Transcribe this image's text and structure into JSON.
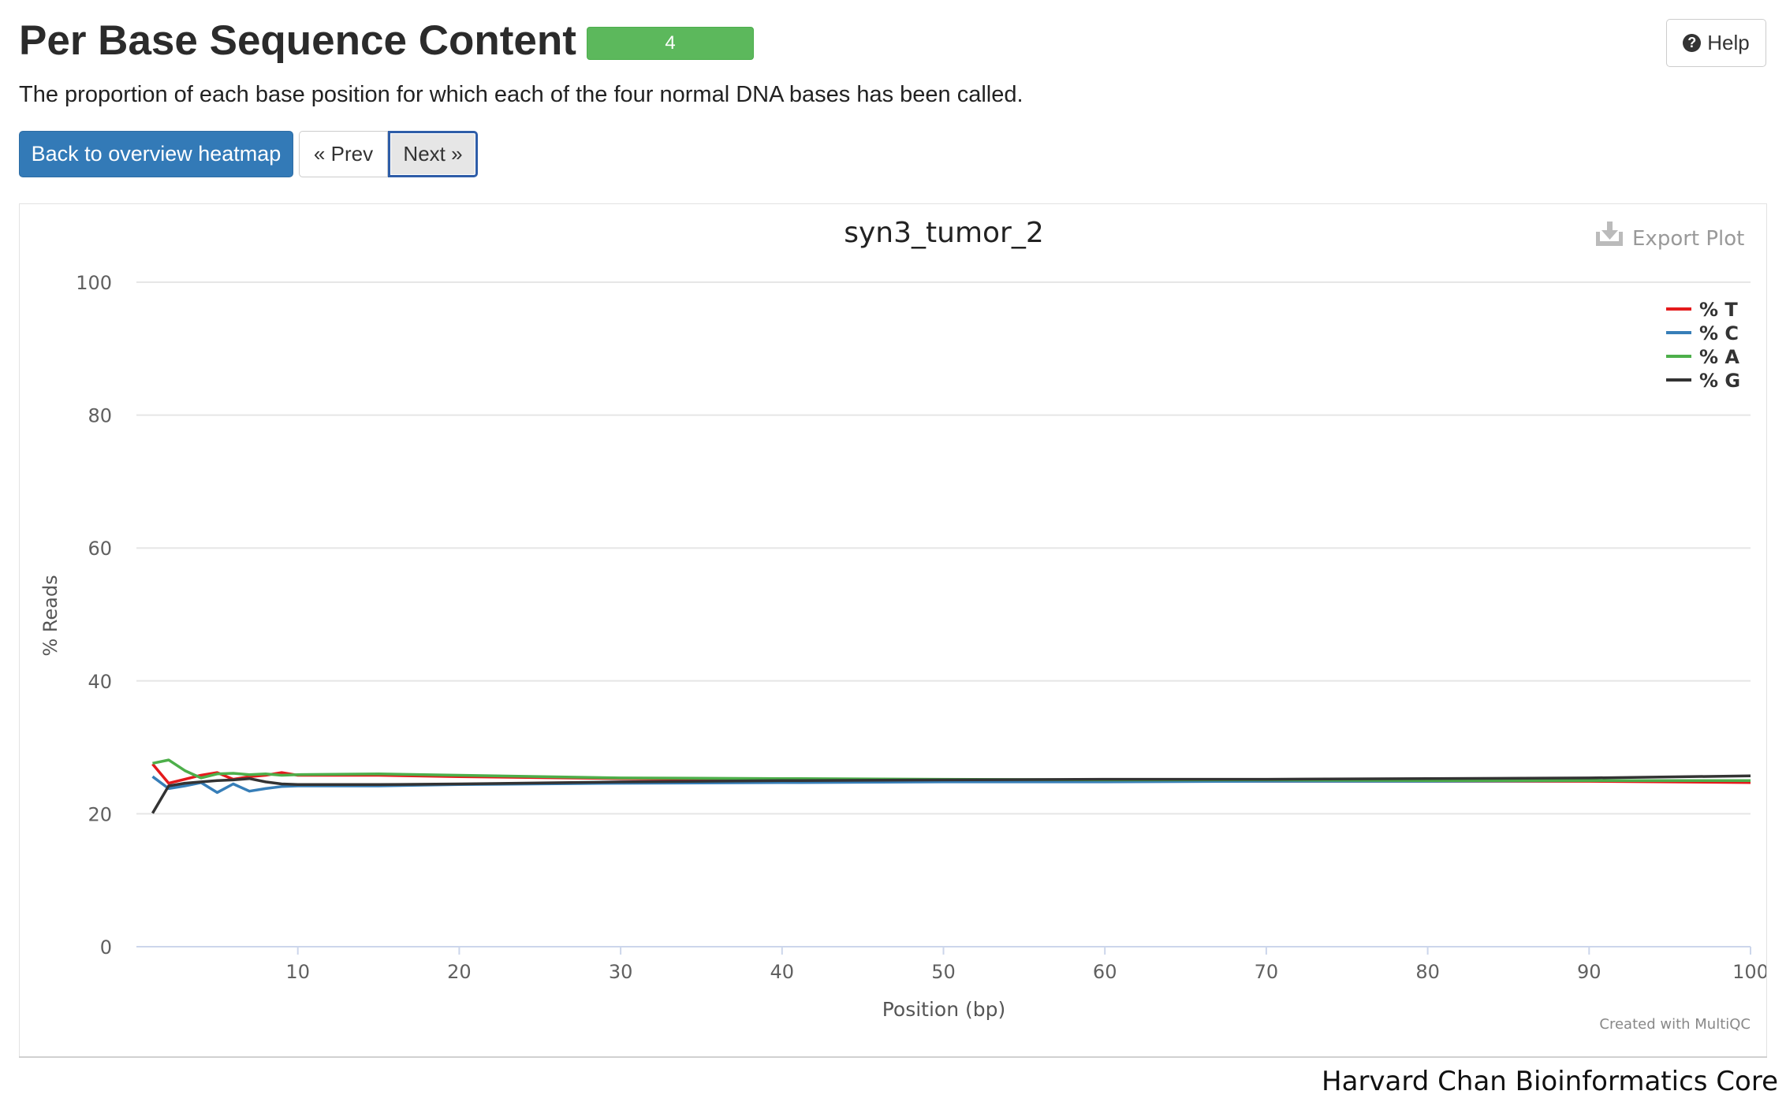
{
  "header": {
    "title": "Per Base Sequence Content",
    "badge": "4",
    "help_label": "Help",
    "help_icon": "question-circle-icon"
  },
  "description": "The proportion of each base position for which each of the four normal DNA bases has been called.",
  "nav": {
    "back_label": "Back to overview heatmap",
    "prev_label": "« Prev",
    "next_label": "Next »"
  },
  "plot": {
    "export_label": "Export Plot",
    "export_icon": "download-icon",
    "watermark": "Created with MultiQC"
  },
  "footer": {
    "credit": "Harvard Chan Bioinformatics Core"
  },
  "chart_data": {
    "type": "line",
    "title": "syn3_tumor_2",
    "xlabel": "Position (bp)",
    "ylabel": "% Reads",
    "xlim": [
      0,
      100
    ],
    "ylim": [
      0,
      100
    ],
    "xticks": [
      10,
      20,
      30,
      40,
      50,
      60,
      70,
      80,
      90,
      100
    ],
    "yticks": [
      0,
      20,
      40,
      60,
      80,
      100
    ],
    "grid": true,
    "legend_position": "top-right",
    "series": [
      {
        "name": "% T",
        "color": "#e41a1c",
        "points": [
          [
            1,
            27.5
          ],
          [
            2,
            24.6
          ],
          [
            3,
            25.2
          ],
          [
            4,
            25.8
          ],
          [
            5,
            26.2
          ],
          [
            6,
            25.2
          ],
          [
            7,
            25.6
          ],
          [
            8,
            25.8
          ],
          [
            9,
            26.2
          ],
          [
            10,
            25.8
          ],
          [
            15,
            25.8
          ],
          [
            20,
            25.6
          ],
          [
            30,
            25.3
          ],
          [
            40,
            25.1
          ],
          [
            50,
            25.0
          ],
          [
            60,
            25.0
          ],
          [
            70,
            24.9
          ],
          [
            80,
            24.9
          ],
          [
            90,
            24.9
          ],
          [
            100,
            24.7
          ]
        ]
      },
      {
        "name": "% C",
        "color": "#377eb8",
        "points": [
          [
            1,
            25.6
          ],
          [
            2,
            23.8
          ],
          [
            3,
            24.2
          ],
          [
            4,
            24.7
          ],
          [
            5,
            23.2
          ],
          [
            6,
            24.5
          ],
          [
            7,
            23.4
          ],
          [
            8,
            23.8
          ],
          [
            9,
            24.1
          ],
          [
            10,
            24.2
          ],
          [
            15,
            24.2
          ],
          [
            20,
            24.4
          ],
          [
            30,
            24.6
          ],
          [
            40,
            24.7
          ],
          [
            50,
            24.8
          ],
          [
            60,
            24.8
          ],
          [
            70,
            24.9
          ],
          [
            80,
            24.9
          ],
          [
            90,
            25.0
          ],
          [
            100,
            25.0
          ]
        ]
      },
      {
        "name": "% A",
        "color": "#4daf4a",
        "points": [
          [
            1,
            27.6
          ],
          [
            2,
            28.1
          ],
          [
            3,
            26.5
          ],
          [
            4,
            25.4
          ],
          [
            5,
            26.0
          ],
          [
            6,
            26.1
          ],
          [
            7,
            25.9
          ],
          [
            8,
            26.0
          ],
          [
            9,
            25.8
          ],
          [
            10,
            25.9
          ],
          [
            15,
            26.0
          ],
          [
            20,
            25.8
          ],
          [
            30,
            25.4
          ],
          [
            40,
            25.3
          ],
          [
            50,
            25.2
          ],
          [
            60,
            25.1
          ],
          [
            70,
            25.1
          ],
          [
            80,
            25.0
          ],
          [
            90,
            25.0
          ],
          [
            100,
            25.0
          ]
        ]
      },
      {
        "name": "% G",
        "color": "#333333",
        "points": [
          [
            1,
            20.1
          ],
          [
            2,
            24.2
          ],
          [
            3,
            24.6
          ],
          [
            4,
            24.8
          ],
          [
            5,
            25.0
          ],
          [
            6,
            25.1
          ],
          [
            7,
            25.3
          ],
          [
            8,
            24.8
          ],
          [
            9,
            24.5
          ],
          [
            10,
            24.4
          ],
          [
            15,
            24.4
          ],
          [
            20,
            24.5
          ],
          [
            30,
            24.8
          ],
          [
            40,
            25.0
          ],
          [
            50,
            25.1
          ],
          [
            60,
            25.2
          ],
          [
            70,
            25.2
          ],
          [
            80,
            25.3
          ],
          [
            90,
            25.4
          ],
          [
            100,
            25.7
          ]
        ]
      }
    ]
  }
}
